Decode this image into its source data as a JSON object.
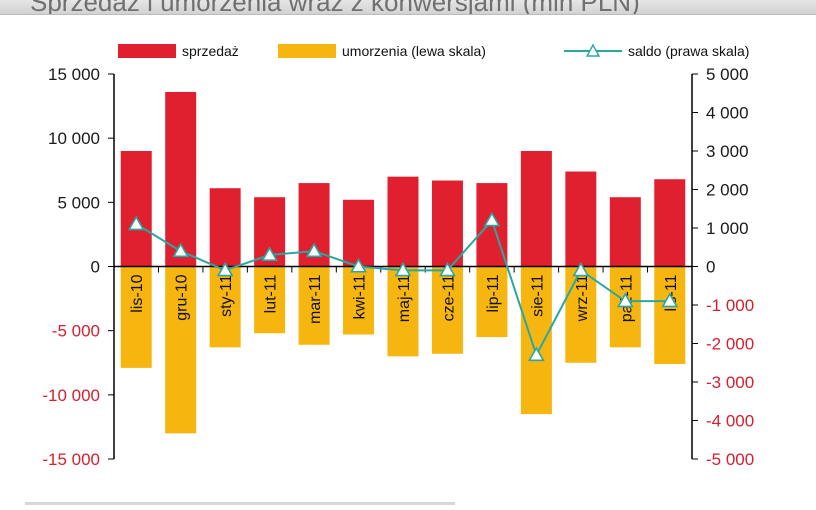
{
  "title": "Sprzedaż i umorzenia wraz z konwersjami (mln PLN)",
  "chart_data": {
    "type": "bar",
    "categories": [
      "lis-10",
      "gru-10",
      "sty-11",
      "lut-11",
      "mar-11",
      "kwi-11",
      "maj-11",
      "cze-11",
      "lip-11",
      "sie-11",
      "wrz-11",
      "paź-11",
      "lis-11"
    ],
    "series": [
      {
        "name": "sprzedaż",
        "type": "bar",
        "axis": "left",
        "values": [
          9000,
          13600,
          6100,
          5400,
          6500,
          5200,
          7000,
          6700,
          6500,
          9000,
          7400,
          5400,
          6800
        ]
      },
      {
        "name": "umorzenia (lewa skala)",
        "type": "bar",
        "axis": "left",
        "values": [
          -7900,
          -13000,
          -6300,
          -5200,
          -6100,
          -5300,
          -7000,
          -6800,
          -5500,
          -11500,
          -7500,
          -6300,
          -7600
        ]
      },
      {
        "name": "saldo (prawa skala)",
        "type": "line",
        "axis": "right",
        "values": [
          1100,
          400,
          -100,
          300,
          400,
          0,
          -100,
          -100,
          1200,
          -2300,
          -100,
          -900,
          -900
        ]
      }
    ],
    "left_axis": {
      "min": -15000,
      "max": 15000,
      "ticks": [
        15000,
        10000,
        5000,
        0,
        -5000,
        -10000,
        -15000
      ],
      "tick_labels": [
        "15 000",
        "10 000",
        "5 000",
        "0",
        "-5 000",
        "-10 000",
        "-15 000"
      ]
    },
    "right_axis": {
      "min": -5000,
      "max": 5000,
      "ticks": [
        5000,
        4000,
        3000,
        2000,
        1000,
        0,
        -1000,
        -2000,
        -3000,
        -4000,
        -5000
      ],
      "tick_labels": [
        "5 000",
        "4 000",
        "3 000",
        "2 000",
        "1 000",
        "0",
        "-1 000",
        "-2 000",
        "-3 000",
        "-4 000",
        "-5 000"
      ]
    },
    "legend_position": "top",
    "grid": false,
    "colors": {
      "sprzedaz": "#e0202f",
      "umorzenia": "#f6b60f",
      "saldo": "#2aa7a3",
      "negative_tick_text": "#d4202f",
      "positive_tick_text": "#1a1a1a"
    }
  }
}
